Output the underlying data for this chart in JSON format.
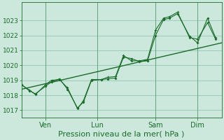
{
  "xlabel": "Pression niveau de la mer( hPa )",
  "bg_color": "#cce8dc",
  "grid_color": "#99ccbb",
  "line_color": "#1a6b2a",
  "ylim": [
    1016.5,
    1024.2
  ],
  "xlim": [
    0,
    100
  ],
  "xtick_labels": [
    "Ven",
    "Lun",
    "Sam",
    "Dim"
  ],
  "xtick_positions": [
    12,
    38,
    67,
    88
  ],
  "yticks": [
    1017,
    1018,
    1019,
    1020,
    1021,
    1022,
    1023
  ],
  "series1_x": [
    0,
    4,
    7,
    12,
    15,
    19,
    23,
    28,
    31,
    35,
    40,
    43,
    47,
    51,
    55,
    59,
    63,
    67,
    71,
    74,
    78,
    84,
    88,
    93,
    97
  ],
  "series1_y": [
    1018.7,
    1018.3,
    1018.1,
    1018.6,
    1018.9,
    1019.1,
    1018.4,
    1017.15,
    1017.55,
    1019.0,
    1019.05,
    1019.1,
    1019.15,
    1020.55,
    1020.45,
    1020.25,
    1020.3,
    1022.0,
    1023.05,
    1023.15,
    1023.45,
    1021.95,
    1021.5,
    1023.15,
    1021.85
  ],
  "series2_x": [
    0,
    4,
    7,
    12,
    15,
    19,
    23,
    28,
    31,
    35,
    40,
    43,
    47,
    51,
    55,
    59,
    63,
    67,
    71,
    74,
    78,
    84,
    88,
    93,
    97
  ],
  "series2_y": [
    1018.7,
    1018.35,
    1018.05,
    1018.7,
    1019.0,
    1019.05,
    1018.5,
    1017.1,
    1017.65,
    1019.05,
    1019.05,
    1019.2,
    1019.25,
    1020.65,
    1020.3,
    1020.3,
    1020.4,
    1022.35,
    1023.15,
    1023.25,
    1023.55,
    1021.85,
    1021.75,
    1022.85,
    1021.75
  ],
  "trend_x": [
    0,
    100
  ],
  "trend_y": [
    1018.4,
    1021.5
  ],
  "xlabel_fontsize": 8,
  "ytick_fontsize": 6.5,
  "xtick_fontsize": 7
}
